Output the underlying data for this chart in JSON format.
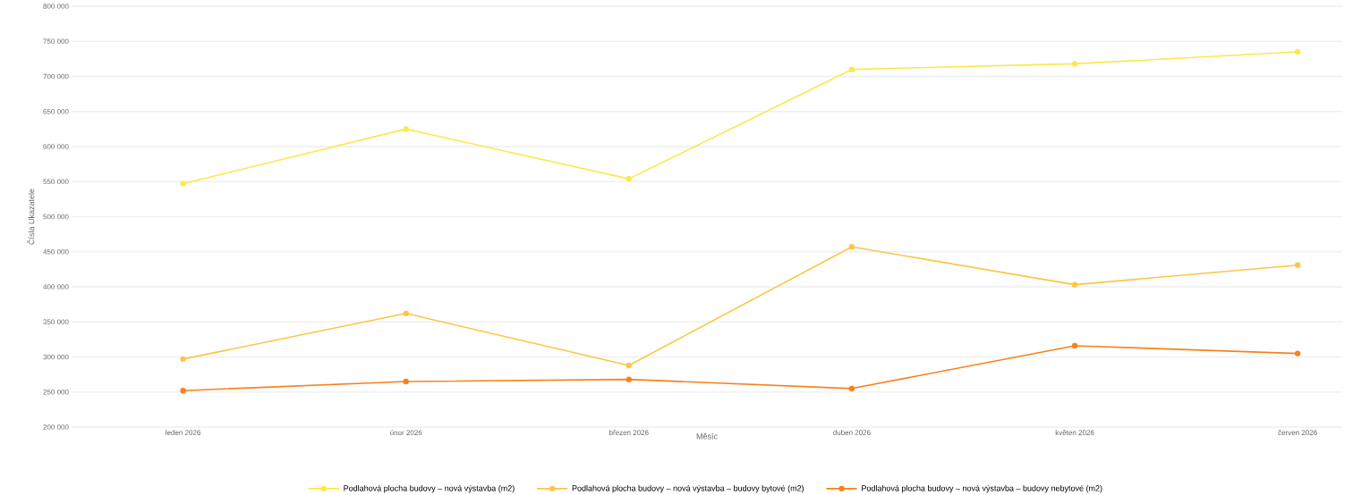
{
  "chart_data": {
    "type": "line",
    "xlabel": "Měsíc",
    "ylabel": "Čísla Ukazatele",
    "categories": [
      "leden 2026",
      "únor 2026",
      "březen 2026",
      "duben 2026",
      "květen 2026",
      "červen 2026"
    ],
    "series": [
      {
        "name": "Podlahová plocha budovy – nová výstavba (m2)",
        "color": "#fde74c",
        "values": [
          547000,
          625000,
          554000,
          710000,
          718000,
          735000
        ]
      },
      {
        "name": "Podlahová plocha budovy – nová výstavba – budovy bytové (m2)",
        "color": "#fbc646",
        "values": [
          297000,
          362000,
          288000,
          457000,
          403000,
          431000
        ]
      },
      {
        "name": "Podlahová plocha budovy – nová výstavba – budovy nebytové (m2)",
        "color": "#f7821b",
        "values": [
          252000,
          265000,
          268000,
          255000,
          316000,
          305000
        ]
      }
    ],
    "ylim": [
      200000,
      800000
    ],
    "yticks": [
      {
        "value": 200000,
        "label": "200 000"
      },
      {
        "value": 250000,
        "label": "250 000"
      },
      {
        "value": 300000,
        "label": "300 000"
      },
      {
        "value": 350000,
        "label": "350 000"
      },
      {
        "value": 400000,
        "label": "400 000"
      },
      {
        "value": 450000,
        "label": "450 000"
      },
      {
        "value": 500000,
        "label": "500 000"
      },
      {
        "value": 550000,
        "label": "550 000"
      },
      {
        "value": 600000,
        "label": "600 000"
      },
      {
        "value": 650000,
        "label": "650 000"
      },
      {
        "value": 700000,
        "label": "700 000"
      },
      {
        "value": 750000,
        "label": "750 000"
      },
      {
        "value": 800000,
        "label": "800 000"
      }
    ],
    "grid": "y",
    "legend": "bottom",
    "marker": "circle",
    "line_style": "solid"
  }
}
